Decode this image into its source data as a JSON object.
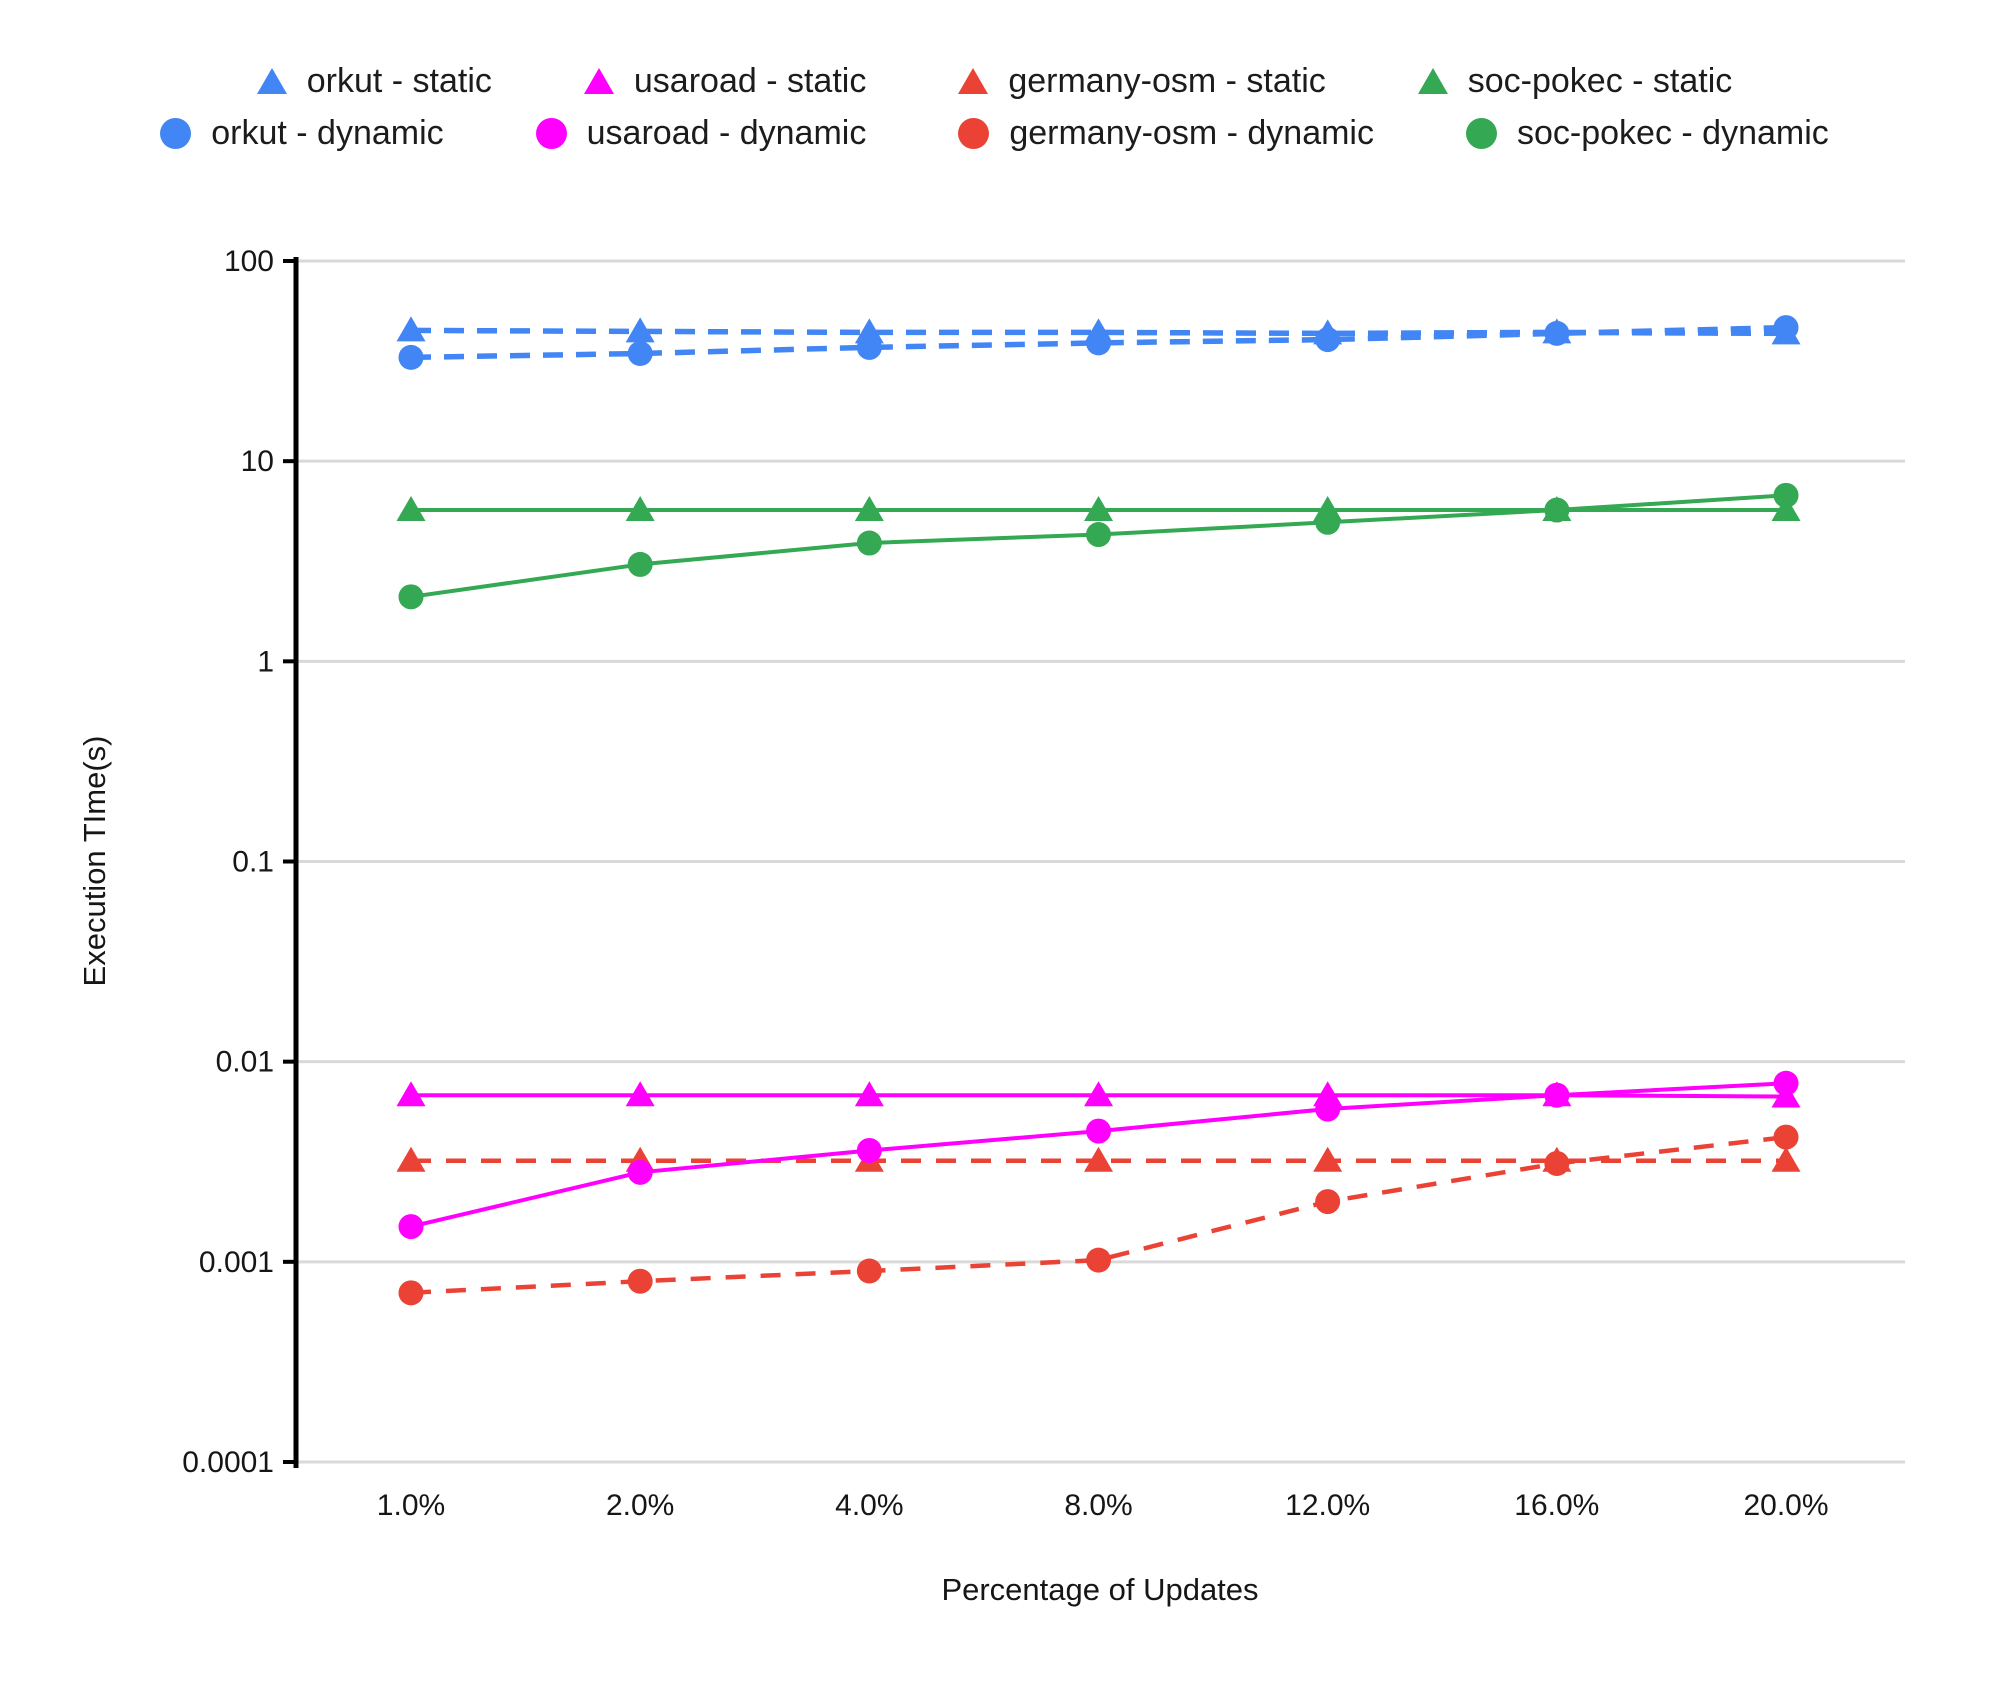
{
  "chart_data": {
    "type": "line",
    "title": "",
    "xlabel": "Percentage of Updates",
    "ylabel": "Execution TIme(s)",
    "x_categories": [
      "1.0%",
      "2.0%",
      "4.0%",
      "8.0%",
      "12.0%",
      "16.0%",
      "20.0%"
    ],
    "y_scale": "log",
    "ylim": [
      0.0001,
      100
    ],
    "y_ticks": [
      100,
      10,
      1,
      0.1,
      0.01,
      0.001,
      0.0001
    ],
    "y_tick_labels": [
      "100",
      "10",
      "1",
      "0.1",
      "0.01",
      "0.001",
      "0.0001"
    ],
    "grid": true,
    "legend_position": "top",
    "series": [
      {
        "name": "orkut - static",
        "color": "#4285F4",
        "marker": "triangle",
        "line": "dashed",
        "values": [
          45,
          44.5,
          44,
          44,
          43.5,
          44,
          43.5
        ]
      },
      {
        "name": "usaroad - static",
        "color": "#FF00FF",
        "marker": "triangle",
        "line": "solid",
        "values": [
          0.0068,
          0.0068,
          0.0068,
          0.0068,
          0.0068,
          0.0068,
          0.0067
        ]
      },
      {
        "name": "germany-osm - static",
        "color": "#EA4335",
        "marker": "triangle",
        "line": "dashed",
        "values": [
          0.0032,
          0.0032,
          0.0032,
          0.0032,
          0.0032,
          0.0032,
          0.0032
        ]
      },
      {
        "name": "soc-pokec - static",
        "color": "#34A853",
        "marker": "triangle",
        "line": "solid",
        "values": [
          5.7,
          5.7,
          5.7,
          5.7,
          5.7,
          5.7,
          5.7
        ]
      },
      {
        "name": "orkut - dynamic",
        "color": "#4285F4",
        "marker": "circle",
        "line": "dashed",
        "values": [
          33,
          34.5,
          37,
          39,
          40.5,
          43.5,
          46.5
        ]
      },
      {
        "name": "usaroad - dynamic",
        "color": "#FF00FF",
        "marker": "circle",
        "line": "solid",
        "values": [
          0.0015,
          0.0028,
          0.0036,
          0.0045,
          0.0058,
          0.0068,
          0.0078
        ]
      },
      {
        "name": "germany-osm - dynamic",
        "color": "#EA4335",
        "marker": "circle",
        "line": "dashed",
        "values": [
          0.0007,
          0.0008,
          0.0009,
          0.00102,
          0.002,
          0.0031,
          0.0042
        ]
      },
      {
        "name": "soc-pokec - dynamic",
        "color": "#34A853",
        "marker": "circle",
        "line": "solid",
        "values": [
          2.1,
          3.05,
          3.9,
          4.3,
          4.95,
          5.7,
          6.75
        ]
      }
    ]
  }
}
